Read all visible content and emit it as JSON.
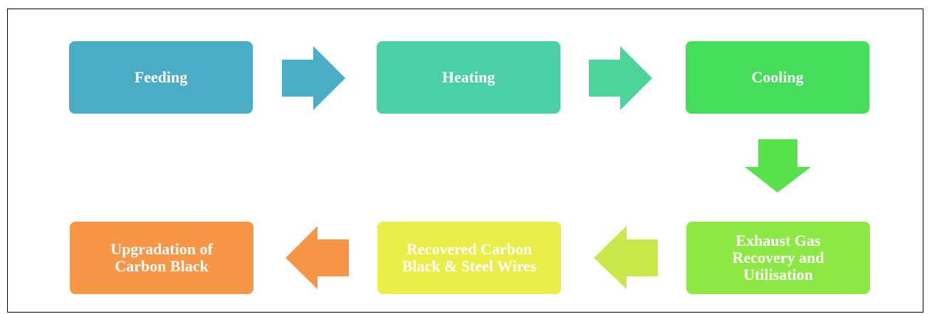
{
  "nodes": [
    {
      "lines": [
        "Feeding"
      ]
    },
    {
      "lines": [
        "Heating"
      ]
    },
    {
      "lines": [
        "Cooling"
      ]
    },
    {
      "lines": [
        "Exhaust Gas",
        "Recovery and",
        "Utilisation"
      ]
    },
    {
      "lines": [
        "Recovered Carbon",
        "Black & Steel Wires"
      ]
    },
    {
      "lines": [
        "Upgradation of",
        "Carbon Black"
      ]
    }
  ]
}
